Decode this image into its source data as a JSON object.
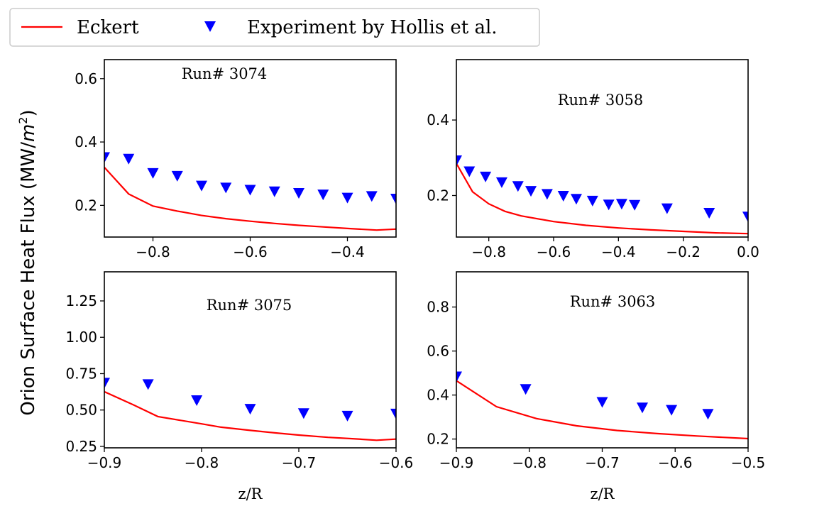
{
  "legend": {
    "entries": [
      {
        "label": "Eckert",
        "marker": "line",
        "color": "#ff0000"
      },
      {
        "label": "Experiment by Hollis et al.",
        "marker": "triangle-down",
        "color": "#0000ff"
      }
    ]
  },
  "figure": {
    "ylabel": "Orion Surface Heat Flux (MW/m²)",
    "xlabel": "z/R"
  },
  "chart_data": [
    {
      "type": "line+scatter",
      "title": "Run# 3074",
      "xlim": [
        -0.9,
        -0.3
      ],
      "ylim": [
        0.1,
        0.66
      ],
      "xticks": [
        -0.8,
        -0.6,
        -0.4
      ],
      "xtick_labels": [
        "−0.8",
        "−0.6",
        "−0.4"
      ],
      "yticks": [
        0.2,
        0.4,
        0.6
      ],
      "ytick_labels": [
        "0.2",
        "0.4",
        "0.6"
      ],
      "xlabel": "",
      "series": [
        {
          "name": "Eckert",
          "kind": "line",
          "x": [
            -0.9,
            -0.85,
            -0.8,
            -0.75,
            -0.7,
            -0.65,
            -0.6,
            -0.55,
            -0.5,
            -0.45,
            -0.4,
            -0.34,
            -0.3
          ],
          "y": [
            0.32,
            0.236,
            0.198,
            0.182,
            0.168,
            0.158,
            0.15,
            0.143,
            0.137,
            0.132,
            0.127,
            0.122,
            0.125
          ]
        },
        {
          "name": "Experiment by Hollis et al.",
          "kind": "scatter",
          "x": [
            -0.9,
            -0.85,
            -0.8,
            -0.75,
            -0.7,
            -0.65,
            -0.6,
            -0.55,
            -0.5,
            -0.45,
            -0.4,
            -0.35,
            -0.3
          ],
          "y": [
            0.352,
            0.347,
            0.302,
            0.293,
            0.262,
            0.256,
            0.249,
            0.244,
            0.239,
            0.234,
            0.224,
            0.229,
            0.221
          ]
        }
      ]
    },
    {
      "type": "line+scatter",
      "title": "Run# 3058",
      "xlim": [
        -0.9,
        0.0
      ],
      "ylim": [
        0.09,
        0.56
      ],
      "xticks": [
        -0.8,
        -0.6,
        -0.4,
        -0.2,
        0.0
      ],
      "xtick_labels": [
        "−0.8",
        "−0.6",
        "−0.4",
        "−0.2",
        "0.0"
      ],
      "yticks": [
        0.2,
        0.4
      ],
      "ytick_labels": [
        "0.2",
        "0.4"
      ],
      "xlabel": "",
      "series": [
        {
          "name": "Eckert",
          "kind": "line",
          "x": [
            -0.9,
            -0.85,
            -0.8,
            -0.75,
            -0.7,
            -0.6,
            -0.5,
            -0.4,
            -0.3,
            -0.2,
            -0.1,
            0.0
          ],
          "y": [
            0.285,
            0.21,
            0.178,
            0.158,
            0.146,
            0.131,
            0.121,
            0.114,
            0.109,
            0.105,
            0.101,
            0.099
          ]
        },
        {
          "name": "Experiment by Hollis et al.",
          "kind": "scatter",
          "x": [
            -0.9,
            -0.86,
            -0.81,
            -0.76,
            -0.71,
            -0.67,
            -0.62,
            -0.57,
            -0.53,
            -0.48,
            -0.43,
            -0.39,
            -0.35,
            -0.25,
            -0.12,
            0.0
          ],
          "y": [
            0.293,
            0.264,
            0.25,
            0.235,
            0.225,
            0.212,
            0.204,
            0.199,
            0.191,
            0.186,
            0.176,
            0.178,
            0.175,
            0.166,
            0.154,
            0.144
          ]
        }
      ]
    },
    {
      "type": "line+scatter",
      "title": "Run# 3075",
      "xlim": [
        -0.9,
        -0.6
      ],
      "ylim": [
        0.24,
        1.45
      ],
      "xticks": [
        -0.9,
        -0.8,
        -0.7,
        -0.6
      ],
      "xtick_labels": [
        "−0.9",
        "−0.8",
        "−0.7",
        "−0.6"
      ],
      "yticks": [
        0.25,
        0.5,
        0.75,
        1.0,
        1.25
      ],
      "ytick_labels": [
        "0.25",
        "0.50",
        "0.75",
        "1.00",
        "1.25"
      ],
      "xlabel": "z/R",
      "series": [
        {
          "name": "Eckert",
          "kind": "line",
          "x": [
            -0.9,
            -0.87,
            -0.845,
            -0.8,
            -0.78,
            -0.75,
            -0.72,
            -0.7,
            -0.67,
            -0.645,
            -0.62,
            -0.6
          ],
          "y": [
            0.626,
            0.535,
            0.455,
            0.405,
            0.382,
            0.36,
            0.34,
            0.328,
            0.312,
            0.303,
            0.292,
            0.3
          ]
        },
        {
          "name": "Experiment by Hollis et al.",
          "kind": "scatter",
          "x": [
            -0.9,
            -0.855,
            -0.805,
            -0.75,
            -0.695,
            -0.65,
            -0.6
          ],
          "y": [
            0.687,
            0.677,
            0.567,
            0.508,
            0.478,
            0.46,
            0.475
          ]
        }
      ]
    },
    {
      "type": "line+scatter",
      "title": "Run# 3063",
      "xlim": [
        -0.9,
        -0.5
      ],
      "ylim": [
        0.16,
        0.96
      ],
      "xticks": [
        -0.9,
        -0.8,
        -0.7,
        -0.6,
        -0.5
      ],
      "xtick_labels": [
        "−0.9",
        "−0.8",
        "−0.7",
        "−0.6",
        "−0.5"
      ],
      "yticks": [
        0.2,
        0.4,
        0.6,
        0.8
      ],
      "ytick_labels": [
        "0.2",
        "0.4",
        "0.6",
        "0.8"
      ],
      "xlabel": "z/R",
      "series": [
        {
          "name": "Eckert",
          "kind": "line",
          "x": [
            -0.9,
            -0.845,
            -0.79,
            -0.735,
            -0.68,
            -0.625,
            -0.57,
            -0.5
          ],
          "y": [
            0.465,
            0.347,
            0.293,
            0.26,
            0.239,
            0.225,
            0.214,
            0.202
          ]
        },
        {
          "name": "Experiment by Hollis et al.",
          "kind": "scatter",
          "x": [
            -0.9,
            -0.805,
            -0.7,
            -0.645,
            -0.605,
            -0.555
          ],
          "y": [
            0.484,
            0.427,
            0.368,
            0.343,
            0.332,
            0.314
          ]
        }
      ]
    }
  ]
}
